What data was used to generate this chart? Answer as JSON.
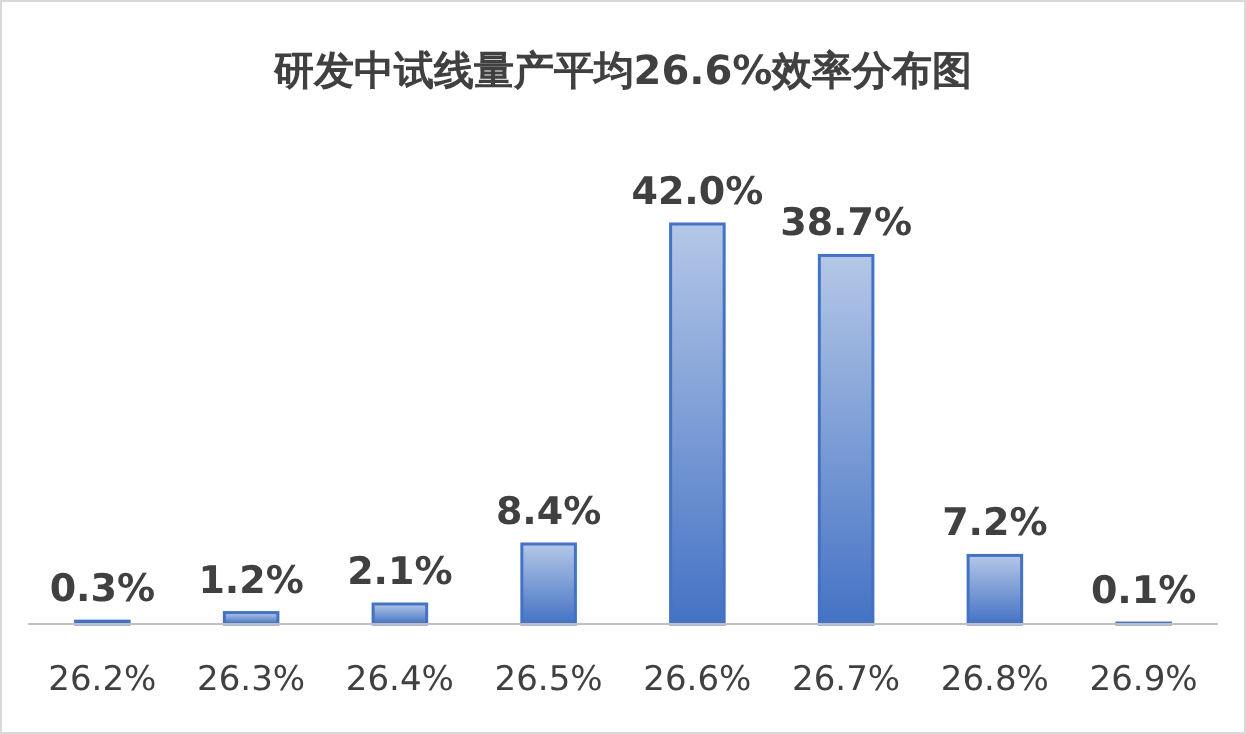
{
  "chart_data": {
    "type": "bar",
    "title": "研发中试线量产平均26.6%效率分布图",
    "categories": [
      "26.2%",
      "26.3%",
      "26.4%",
      "26.5%",
      "26.6%",
      "26.7%",
      "26.8%",
      "26.9%"
    ],
    "values": [
      0.3,
      1.2,
      2.1,
      8.4,
      42.0,
      38.7,
      7.2,
      0.1
    ],
    "value_labels": [
      "0.3%",
      "1.2%",
      "2.1%",
      "8.4%",
      "42.0%",
      "38.7%",
      "7.2%",
      "0.1%"
    ],
    "color": "#4472c4",
    "grid": false
  }
}
